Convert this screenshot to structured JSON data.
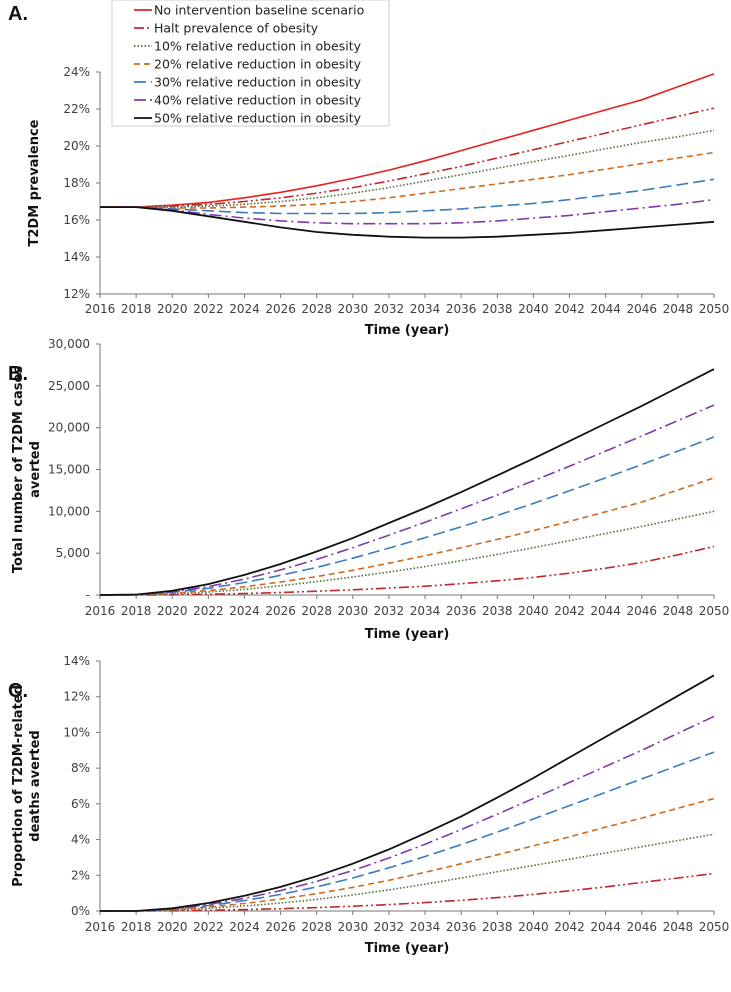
{
  "series_styles": [
    {
      "name": "No intervention baseline scenario",
      "color": "#e8201f",
      "dash": ""
    },
    {
      "name": "Halt prevalence of obesity",
      "color": "#c0282a",
      "dash": "10,3,2,3,2,3"
    },
    {
      "name": "10% relative reduction in obesity",
      "color": "#4d6b3c",
      "dash": "1.5,2"
    },
    {
      "name": "20% relative reduction in obesity",
      "color": "#d2691e",
      "dash": "6,4"
    },
    {
      "name": "30% relative reduction in obesity",
      "color": "#3a7dbf",
      "dash": "12,5"
    },
    {
      "name": "40% relative reduction in obesity",
      "color": "#7e3ca8",
      "dash": "12,4,2,4"
    },
    {
      "name": "50% relative reduction in obesity",
      "color": "#111111",
      "dash": ""
    }
  ],
  "chart_data": [
    {
      "type": "line",
      "panel_label": "A.",
      "xlabel": "Time (year)",
      "ylabel": "T2DM prevalence",
      "ylim": [
        12,
        24
      ],
      "yticks": [
        "12%",
        "14%",
        "16%",
        "18%",
        "20%",
        "22%",
        "24%"
      ],
      "ytick_values": [
        12,
        14,
        16,
        18,
        20,
        22,
        24
      ],
      "x": [
        2016,
        2018,
        2020,
        2022,
        2024,
        2026,
        2028,
        2030,
        2032,
        2034,
        2036,
        2038,
        2040,
        2042,
        2044,
        2046,
        2048,
        2050
      ],
      "legend": "top-center",
      "series": [
        {
          "name": "No intervention baseline scenario",
          "values": [
            16.7,
            16.7,
            16.8,
            16.95,
            17.2,
            17.5,
            17.85,
            18.25,
            18.7,
            19.2,
            19.75,
            20.3,
            20.85,
            21.4,
            21.95,
            22.5,
            23.2,
            23.9
          ]
        },
        {
          "name": "Halt prevalence of obesity",
          "values": [
            16.7,
            16.7,
            16.75,
            16.85,
            17.0,
            17.2,
            17.45,
            17.75,
            18.1,
            18.5,
            18.9,
            19.35,
            19.8,
            20.25,
            20.7,
            21.15,
            21.6,
            22.05
          ]
        },
        {
          "name": "10% relative reduction in obesity",
          "values": [
            16.7,
            16.7,
            16.7,
            16.75,
            16.85,
            17.0,
            17.2,
            17.45,
            17.75,
            18.1,
            18.45,
            18.8,
            19.15,
            19.5,
            19.85,
            20.2,
            20.5,
            20.85
          ]
        },
        {
          "name": "20% relative reduction in obesity",
          "values": [
            16.7,
            16.7,
            16.65,
            16.65,
            16.7,
            16.75,
            16.85,
            17.0,
            17.2,
            17.45,
            17.7,
            17.95,
            18.2,
            18.45,
            18.75,
            19.05,
            19.35,
            19.65
          ]
        },
        {
          "name": "30% relative reduction in obesity",
          "values": [
            16.7,
            16.7,
            16.6,
            16.5,
            16.4,
            16.35,
            16.35,
            16.35,
            16.4,
            16.5,
            16.6,
            16.75,
            16.9,
            17.1,
            17.35,
            17.6,
            17.9,
            18.2
          ]
        },
        {
          "name": "40% relative reduction in obesity",
          "values": [
            16.7,
            16.7,
            16.55,
            16.3,
            16.1,
            15.95,
            15.85,
            15.8,
            15.8,
            15.8,
            15.85,
            15.95,
            16.1,
            16.25,
            16.45,
            16.65,
            16.85,
            17.1
          ]
        },
        {
          "name": "50% relative reduction in obesity",
          "values": [
            16.7,
            16.7,
            16.5,
            16.2,
            15.9,
            15.6,
            15.35,
            15.2,
            15.1,
            15.05,
            15.05,
            15.1,
            15.2,
            15.3,
            15.45,
            15.6,
            15.75,
            15.9
          ]
        }
      ]
    },
    {
      "type": "line",
      "panel_label": "B.",
      "xlabel": "Time (year)",
      "ylabel": "Total number of T2DM cases averted",
      "ylim": [
        0,
        30000
      ],
      "yticks": [
        "-",
        "5,000",
        "10,000",
        "15,000",
        "20,000",
        "25,000",
        "30,000"
      ],
      "ytick_values": [
        0,
        5000,
        10000,
        15000,
        20000,
        25000,
        30000
      ],
      "x": [
        2016,
        2018,
        2020,
        2022,
        2024,
        2026,
        2028,
        2030,
        2032,
        2034,
        2036,
        2038,
        2040,
        2042,
        2044,
        2046,
        2048,
        2050
      ],
      "series": [
        {
          "name": "Halt prevalence of obesity",
          "values": [
            0,
            0,
            20,
            80,
            180,
            300,
            450,
            620,
            820,
            1050,
            1350,
            1700,
            2100,
            2600,
            3200,
            3900,
            4800,
            5800
          ]
        },
        {
          "name": "10% relative reduction in obesity",
          "values": [
            0,
            20,
            130,
            350,
            680,
            1100,
            1600,
            2150,
            2750,
            3400,
            4100,
            4850,
            5650,
            6500,
            7350,
            8200,
            9100,
            10000
          ]
        },
        {
          "name": "20% relative reduction in obesity",
          "values": [
            0,
            25,
            200,
            520,
            980,
            1550,
            2200,
            2950,
            3800,
            4700,
            5650,
            6650,
            7700,
            8800,
            9950,
            11100,
            12550,
            14000
          ]
        },
        {
          "name": "30% relative reduction in obesity",
          "values": [
            0,
            35,
            320,
            800,
            1500,
            2350,
            3300,
            4400,
            5600,
            6850,
            8150,
            9500,
            10950,
            12450,
            14000,
            15600,
            17200,
            18900
          ]
        },
        {
          "name": "40% relative reduction in obesity",
          "values": [
            0,
            40,
            400,
            1000,
            1900,
            3000,
            4250,
            5650,
            7150,
            8700,
            10300,
            11950,
            13650,
            15400,
            17200,
            19000,
            20850,
            22700
          ]
        },
        {
          "name": "50% relative reduction in obesity",
          "values": [
            0,
            50,
            500,
            1300,
            2400,
            3700,
            5200,
            6800,
            8600,
            10400,
            12300,
            14300,
            16300,
            18400,
            20500,
            22600,
            24800,
            27000
          ]
        }
      ]
    },
    {
      "type": "line",
      "panel_label": "C.",
      "xlabel": "Time (year)",
      "ylabel": "Proportion of T2DM-related deaths averted",
      "ylim": [
        0,
        14
      ],
      "yticks": [
        "0%",
        "2%",
        "4%",
        "6%",
        "8%",
        "10%",
        "12%",
        "14%"
      ],
      "ytick_values": [
        0,
        2,
        4,
        6,
        8,
        10,
        12,
        14
      ],
      "x": [
        2016,
        2018,
        2020,
        2022,
        2024,
        2026,
        2028,
        2030,
        2032,
        2034,
        2036,
        2038,
        2040,
        2042,
        2044,
        2046,
        2048,
        2050
      ],
      "series": [
        {
          "name": "Halt prevalence of obesity",
          "values": [
            0,
            0,
            0.01,
            0.04,
            0.08,
            0.13,
            0.19,
            0.27,
            0.36,
            0.47,
            0.6,
            0.75,
            0.93,
            1.13,
            1.35,
            1.6,
            1.85,
            2.1
          ]
        },
        {
          "name": "10% relative reduction in obesity",
          "values": [
            0,
            0,
            0.05,
            0.15,
            0.28,
            0.45,
            0.65,
            0.9,
            1.18,
            1.5,
            1.85,
            2.2,
            2.55,
            2.9,
            3.25,
            3.6,
            3.95,
            4.3
          ]
        },
        {
          "name": "20% relative reduction in obesity",
          "values": [
            0,
            0,
            0.07,
            0.22,
            0.42,
            0.67,
            0.97,
            1.32,
            1.72,
            2.17,
            2.65,
            3.15,
            3.65,
            4.15,
            4.7,
            5.2,
            5.75,
            6.3
          ]
        },
        {
          "name": "30% relative reduction in obesity",
          "values": [
            0,
            0,
            0.1,
            0.3,
            0.58,
            0.93,
            1.35,
            1.85,
            2.42,
            3.05,
            3.72,
            4.42,
            5.15,
            5.9,
            6.65,
            7.4,
            8.15,
            8.9
          ]
        },
        {
          "name": "40% relative reduction in obesity",
          "values": [
            0,
            0,
            0.12,
            0.37,
            0.71,
            1.14,
            1.66,
            2.27,
            2.97,
            3.74,
            4.56,
            5.42,
            6.3,
            7.2,
            8.1,
            9.0,
            9.95,
            10.9
          ]
        },
        {
          "name": "50% relative reduction in obesity",
          "values": [
            0,
            0,
            0.15,
            0.45,
            0.85,
            1.35,
            1.95,
            2.65,
            3.45,
            4.35,
            5.3,
            6.35,
            7.45,
            8.6,
            9.75,
            10.9,
            12.05,
            13.2
          ]
        }
      ]
    }
  ]
}
